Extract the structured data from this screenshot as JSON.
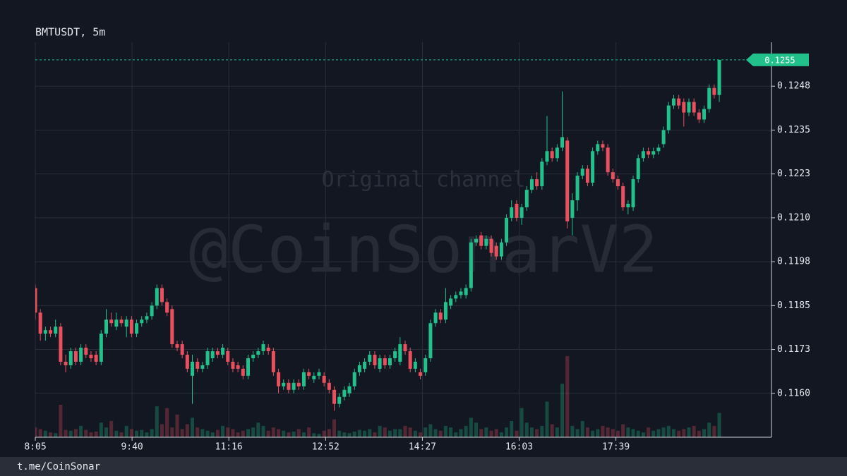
{
  "chart_data": {
    "type": "candlestick",
    "title": "BMTUSDT, 5m",
    "watermarks": [
      "Original channel",
      "@CoinSonarV2"
    ],
    "footer": "t.me/CoinSonar",
    "up_color": "#22c08a",
    "down_color": "#e8505f",
    "grid": true,
    "last_price": 0.1255,
    "xlim": [
      0,
      145.3
    ],
    "xticks": [
      {
        "value": 0,
        "label": "8:05"
      },
      {
        "value": 19.1,
        "label": "9:40"
      },
      {
        "value": 38.2,
        "label": "11:16"
      },
      {
        "value": 57.3,
        "label": "12:52"
      },
      {
        "value": 76.4,
        "label": "14:27"
      },
      {
        "value": 95.5,
        "label": "16:03"
      },
      {
        "value": 114.6,
        "label": "17:39"
      }
    ],
    "ylim": [
      0.11475,
      0.126
    ],
    "yticks": [
      {
        "value": 0.116,
        "label": "0.1160"
      },
      {
        "value": 0.11725,
        "label": "0.1173"
      },
      {
        "value": 0.1185,
        "label": "0.1185"
      },
      {
        "value": 0.11975,
        "label": "0.1198"
      },
      {
        "value": 0.121,
        "label": "0.1210"
      },
      {
        "value": 0.12225,
        "label": "0.1223"
      },
      {
        "value": 0.1235,
        "label": "0.1235"
      },
      {
        "value": 0.12475,
        "label": "0.1248"
      }
    ],
    "ohlc": [
      [
        0.119,
        0.1191,
        0.1181,
        0.1183
      ],
      [
        0.1183,
        0.1184,
        0.1175,
        0.1177
      ],
      [
        0.1177,
        0.1179,
        0.1175,
        0.1178
      ],
      [
        0.1178,
        0.1179,
        0.1176,
        0.1177
      ],
      [
        0.1177,
        0.1181,
        0.1176,
        0.1179
      ],
      [
        0.1179,
        0.118,
        0.1168,
        0.1169
      ],
      [
        0.1169,
        0.1171,
        0.1166,
        0.1168
      ],
      [
        0.1168,
        0.1173,
        0.1167,
        0.1172
      ],
      [
        0.1172,
        0.1173,
        0.1168,
        0.1169
      ],
      [
        0.1169,
        0.1174,
        0.1168,
        0.1173
      ],
      [
        0.1173,
        0.1174,
        0.117,
        0.1171
      ],
      [
        0.1171,
        0.1172,
        0.1169,
        0.117
      ],
      [
        0.1171,
        0.1172,
        0.1168,
        0.1169
      ],
      [
        0.1169,
        0.1178,
        0.1168,
        0.1177
      ],
      [
        0.1177,
        0.1184,
        0.1176,
        0.1181
      ],
      [
        0.1181,
        0.1183,
        0.1179,
        0.118
      ],
      [
        0.1179,
        0.1183,
        0.1178,
        0.1181
      ],
      [
        0.1181,
        0.1182,
        0.1179,
        0.118
      ],
      [
        0.1179,
        0.1182,
        0.1176,
        0.1181
      ],
      [
        0.1181,
        0.1182,
        0.1176,
        0.1177
      ],
      [
        0.1177,
        0.1181,
        0.1176,
        0.118
      ],
      [
        0.118,
        0.1182,
        0.1179,
        0.1181
      ],
      [
        0.1181,
        0.1183,
        0.118,
        0.1182
      ],
      [
        0.1182,
        0.1186,
        0.1181,
        0.1185
      ],
      [
        0.1185,
        0.1191,
        0.1184,
        0.119
      ],
      [
        0.119,
        0.1191,
        0.1185,
        0.1186
      ],
      [
        0.1186,
        0.1187,
        0.1182,
        0.1183
      ],
      [
        0.1184,
        0.1185,
        0.1173,
        0.1174
      ],
      [
        0.1174,
        0.1175,
        0.1172,
        0.1173
      ],
      [
        0.1174,
        0.1175,
        0.117,
        0.1171
      ],
      [
        0.1171,
        0.1172,
        0.1166,
        0.1167
      ],
      [
        0.1165,
        0.1171,
        0.1157,
        0.1169
      ],
      [
        0.1169,
        0.117,
        0.1166,
        0.1167
      ],
      [
        0.1167,
        0.1169,
        0.1166,
        0.1168
      ],
      [
        0.1168,
        0.1173,
        0.1167,
        0.1172
      ],
      [
        0.117,
        0.1173,
        0.1169,
        0.1172
      ],
      [
        0.1172,
        0.1173,
        0.117,
        0.1171
      ],
      [
        0.1171,
        0.1174,
        0.117,
        0.1173
      ],
      [
        0.1172,
        0.1173,
        0.1168,
        0.1169
      ],
      [
        0.1169,
        0.117,
        0.1166,
        0.1167
      ],
      [
        0.1168,
        0.1169,
        0.1166,
        0.1167
      ],
      [
        0.1167,
        0.1168,
        0.1164,
        0.1165
      ],
      [
        0.1165,
        0.1171,
        0.1164,
        0.117
      ],
      [
        0.117,
        0.1172,
        0.1169,
        0.1171
      ],
      [
        0.1171,
        0.1173,
        0.117,
        0.1172
      ],
      [
        0.1172,
        0.1175,
        0.1171,
        0.1174
      ],
      [
        0.1173,
        0.1174,
        0.1171,
        0.1172
      ],
      [
        0.1172,
        0.1173,
        0.1165,
        0.1166
      ],
      [
        0.1166,
        0.1167,
        0.116,
        0.1162
      ],
      [
        0.1162,
        0.1164,
        0.1161,
        0.1163
      ],
      [
        0.1163,
        0.1164,
        0.116,
        0.1161
      ],
      [
        0.1161,
        0.1164,
        0.116,
        0.1163
      ],
      [
        0.1163,
        0.1164,
        0.1161,
        0.1162
      ],
      [
        0.1162,
        0.1167,
        0.1161,
        0.1166
      ],
      [
        0.1166,
        0.1167,
        0.1164,
        0.1165
      ],
      [
        0.1164,
        0.1166,
        0.1163,
        0.1165
      ],
      [
        0.1165,
        0.1167,
        0.1164,
        0.1166
      ],
      [
        0.1165,
        0.1166,
        0.1162,
        0.1163
      ],
      [
        0.1163,
        0.1164,
        0.116,
        0.1161
      ],
      [
        0.1161,
        0.1162,
        0.1155,
        0.1157
      ],
      [
        0.1157,
        0.116,
        0.1156,
        0.1159
      ],
      [
        0.1159,
        0.1162,
        0.1158,
        0.1161
      ],
      [
        0.116,
        0.1163,
        0.1159,
        0.1162
      ],
      [
        0.1162,
        0.1167,
        0.1161,
        0.1166
      ],
      [
        0.1166,
        0.1169,
        0.1165,
        0.1168
      ],
      [
        0.1167,
        0.117,
        0.1166,
        0.1169
      ],
      [
        0.1169,
        0.1172,
        0.1168,
        0.1171
      ],
      [
        0.1171,
        0.1172,
        0.1167,
        0.1168
      ],
      [
        0.1167,
        0.1171,
        0.1166,
        0.117
      ],
      [
        0.117,
        0.1171,
        0.1167,
        0.1168
      ],
      [
        0.1168,
        0.1171,
        0.1167,
        0.117
      ],
      [
        0.117,
        0.1173,
        0.1169,
        0.1172
      ],
      [
        0.1169,
        0.1176,
        0.1168,
        0.1174
      ],
      [
        0.1174,
        0.1175,
        0.1171,
        0.1172
      ],
      [
        0.1172,
        0.1173,
        0.1166,
        0.1167
      ],
      [
        0.1167,
        0.117,
        0.1166,
        0.1169
      ],
      [
        0.1166,
        0.1167,
        0.1164,
        0.1165
      ],
      [
        0.1166,
        0.1171,
        0.1165,
        0.117
      ],
      [
        0.117,
        0.1181,
        0.1169,
        0.118
      ],
      [
        0.118,
        0.1184,
        0.1179,
        0.1183
      ],
      [
        0.1183,
        0.1184,
        0.118,
        0.1181
      ],
      [
        0.1181,
        0.119,
        0.118,
        0.1186
      ],
      [
        0.1185,
        0.1188,
        0.1184,
        0.1187
      ],
      [
        0.1187,
        0.1189,
        0.1186,
        0.1188
      ],
      [
        0.1188,
        0.119,
        0.1187,
        0.1189
      ],
      [
        0.1188,
        0.1191,
        0.1187,
        0.119
      ],
      [
        0.119,
        0.1204,
        0.1189,
        0.1203
      ],
      [
        0.1203,
        0.1205,
        0.1202,
        0.1204
      ],
      [
        0.1205,
        0.1206,
        0.1201,
        0.1202
      ],
      [
        0.1202,
        0.1205,
        0.1201,
        0.1204
      ],
      [
        0.1204,
        0.1205,
        0.1199,
        0.12
      ],
      [
        0.1202,
        0.1203,
        0.1198,
        0.1199
      ],
      [
        0.1199,
        0.1204,
        0.1198,
        0.1203
      ],
      [
        0.1203,
        0.1211,
        0.1202,
        0.121
      ],
      [
        0.121,
        0.1215,
        0.1209,
        0.1213
      ],
      [
        0.1214,
        0.1215,
        0.1209,
        0.121
      ],
      [
        0.121,
        0.1214,
        0.1208,
        0.1213
      ],
      [
        0.1213,
        0.1219,
        0.1212,
        0.1218
      ],
      [
        0.1218,
        0.1222,
        0.1217,
        0.1221
      ],
      [
        0.1221,
        0.1223,
        0.1218,
        0.1219
      ],
      [
        0.1219,
        0.1227,
        0.1218,
        0.1226
      ],
      [
        0.1226,
        0.1239,
        0.1225,
        0.1229
      ],
      [
        0.1229,
        0.123,
        0.1226,
        0.1227
      ],
      [
        0.1227,
        0.1231,
        0.1226,
        0.123
      ],
      [
        0.123,
        0.1246,
        0.1229,
        0.1233
      ],
      [
        0.1232,
        0.1233,
        0.1207,
        0.1209
      ],
      [
        0.121,
        0.1217,
        0.1205,
        0.1215
      ],
      [
        0.1215,
        0.1223,
        0.1212,
        0.1222
      ],
      [
        0.1222,
        0.1225,
        0.1221,
        0.1224
      ],
      [
        0.1224,
        0.1225,
        0.1219,
        0.122
      ],
      [
        0.122,
        0.123,
        0.1219,
        0.1229
      ],
      [
        0.1229,
        0.1232,
        0.1228,
        0.1231
      ],
      [
        0.1231,
        0.1232,
        0.1229,
        0.123
      ],
      [
        0.123,
        0.1231,
        0.1222,
        0.1223
      ],
      [
        0.1223,
        0.1224,
        0.122,
        0.1221
      ],
      [
        0.1221,
        0.1222,
        0.1218,
        0.1219
      ],
      [
        0.1219,
        0.122,
        0.1212,
        0.1213
      ],
      [
        0.1213,
        0.1215,
        0.1211,
        0.1214
      ],
      [
        0.1213,
        0.1222,
        0.1212,
        0.1221
      ],
      [
        0.1221,
        0.1228,
        0.122,
        0.1227
      ],
      [
        0.1227,
        0.123,
        0.1226,
        0.1229
      ],
      [
        0.1229,
        0.123,
        0.1227,
        0.1228
      ],
      [
        0.1228,
        0.123,
        0.1227,
        0.1229
      ],
      [
        0.1229,
        0.1231,
        0.1228,
        0.123
      ],
      [
        0.1231,
        0.1236,
        0.123,
        0.1235
      ],
      [
        0.1235,
        0.1243,
        0.1234,
        0.1242
      ],
      [
        0.1242,
        0.1245,
        0.1241,
        0.1244
      ],
      [
        0.1244,
        0.1245,
        0.1241,
        0.1242
      ],
      [
        0.1243,
        0.1244,
        0.1236,
        0.124
      ],
      [
        0.124,
        0.1244,
        0.1239,
        0.1243
      ],
      [
        0.1243,
        0.1244,
        0.1239,
        0.124
      ],
      [
        0.124,
        0.1241,
        0.1237,
        0.1238
      ],
      [
        0.1238,
        0.1242,
        0.1237,
        0.1241
      ],
      [
        0.1241,
        0.1248,
        0.124,
        0.1247
      ],
      [
        0.1247,
        0.1248,
        0.1244,
        0.1245
      ],
      [
        0.1245,
        0.1255,
        0.1243,
        0.1255
      ]
    ],
    "volume": [
      12,
      10,
      8,
      6,
      5,
      40,
      9,
      8,
      10,
      14,
      9,
      6,
      7,
      18,
      12,
      20,
      8,
      6,
      14,
      10,
      8,
      9,
      6,
      10,
      38,
      16,
      36,
      12,
      28,
      10,
      16,
      24,
      12,
      10,
      8,
      6,
      9,
      14,
      12,
      10,
      6,
      8,
      10,
      12,
      18,
      14,
      8,
      12,
      10,
      8,
      6,
      7,
      10,
      6,
      12,
      5,
      4,
      8,
      10,
      22,
      8,
      6,
      5,
      7,
      9,
      8,
      10,
      6,
      14,
      12,
      8,
      10,
      10,
      14,
      12,
      8,
      6,
      12,
      16,
      10,
      8,
      14,
      12,
      6,
      10,
      14,
      24,
      18,
      10,
      12,
      8,
      10,
      6,
      12,
      20,
      8,
      36,
      18,
      12,
      10,
      14,
      44,
      16,
      12,
      66,
      100,
      14,
      10,
      20,
      12,
      8,
      10,
      14,
      12,
      10,
      8,
      16,
      12,
      10,
      8,
      6,
      12,
      8,
      10,
      12,
      14,
      10,
      8,
      10,
      12,
      14,
      8,
      10,
      18,
      14,
      30
    ]
  }
}
